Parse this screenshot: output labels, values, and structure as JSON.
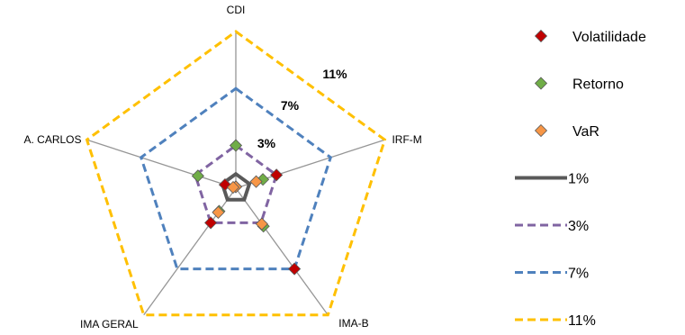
{
  "chart_data": {
    "type": "radar",
    "axes": [
      "CDI",
      "IRF-M",
      "IMA-B",
      "IMA GERAL",
      "A. CARLOS"
    ],
    "rmax": 11,
    "rings": [
      {
        "name": "1%",
        "value": 1,
        "color": "#595959",
        "dash": "solid"
      },
      {
        "name": "3%",
        "value": 3,
        "color": "#8064A2",
        "dash": "dashed"
      },
      {
        "name": "7%",
        "value": 7,
        "color": "#4F81BD",
        "dash": "dashed"
      },
      {
        "name": "11%",
        "value": 11,
        "color": "#FFC000",
        "dash": "dashed"
      }
    ],
    "ring_labels": [
      "3%",
      "7%",
      "11%"
    ],
    "series": [
      {
        "name": "Volatilidade",
        "color": "#C00000",
        "values": [
          0.1,
          3.0,
          7.0,
          3.0,
          0.8
        ]
      },
      {
        "name": "Retorno",
        "color": "#70AD47",
        "values": [
          3.0,
          2.0,
          3.3,
          2.0,
          2.8
        ]
      },
      {
        "name": "VaR",
        "color": "#F79646",
        "values": [
          0.1,
          1.5,
          3.1,
          2.1,
          0.2
        ]
      }
    ],
    "legend_position": "right",
    "grid": false
  }
}
